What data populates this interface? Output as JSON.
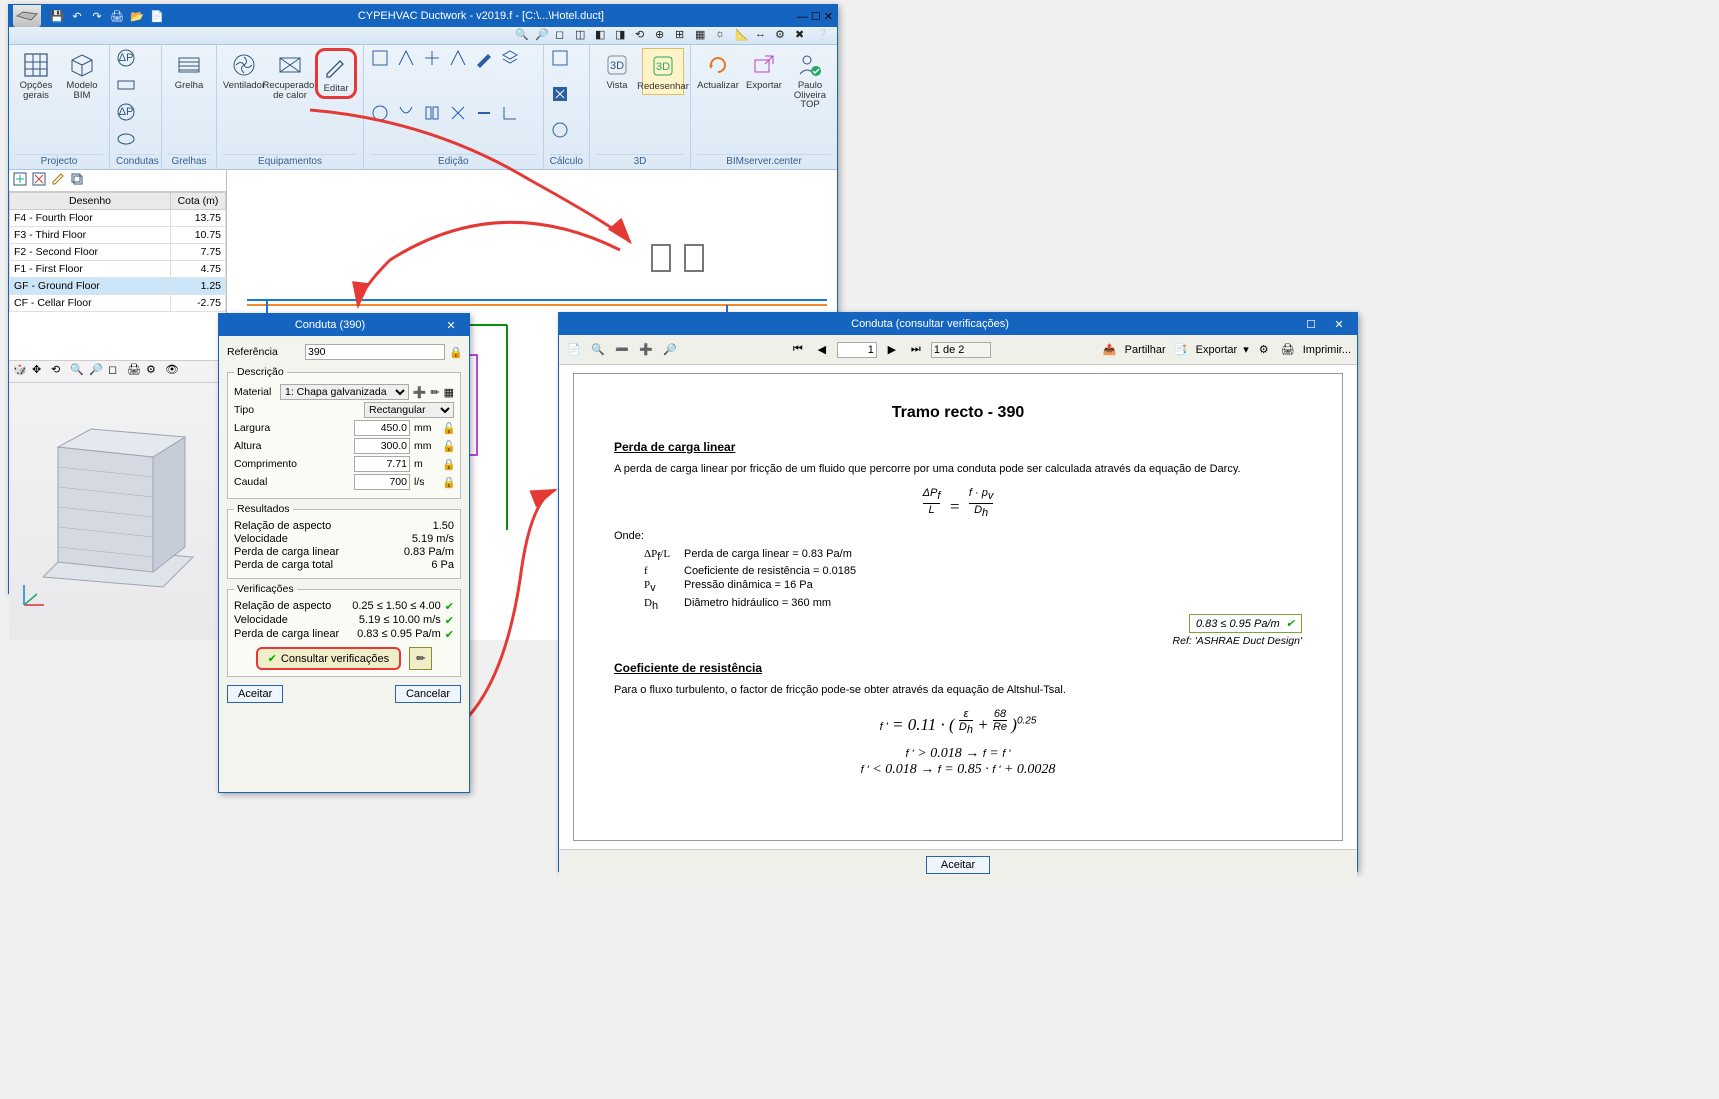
{
  "mainWindow": {
    "title": "CYPEHVAC Ductwork - v2019.f - [C:\\...\\Hotel.duct]",
    "ribbon": {
      "projecto": {
        "name": "Projecto",
        "opcoes": "Opções\ngerais",
        "modelo": "Modelo\nBIM"
      },
      "condutas": {
        "name": "Condutas"
      },
      "grelhas": {
        "name": "Grelhas",
        "grelha": "Grelha"
      },
      "equip": {
        "name": "Equipamentos",
        "ventilador": "Ventilador",
        "recuperador": "Recuperador\nde calor",
        "editar": "Editar"
      },
      "edicao": {
        "name": "Edição"
      },
      "calculo": {
        "name": "Cálculo"
      },
      "d3": {
        "name": "3D",
        "vista": "Vista",
        "redesenhar": "Redesenhar"
      },
      "bim": {
        "name": "BIMserver.center",
        "actualizar": "Actualizar",
        "exportar": "Exportar",
        "paulo": "Paulo\nOliveira TOP"
      }
    }
  },
  "floors": {
    "colDesenho": "Desenho",
    "colCota": "Cota (m)",
    "rows": [
      {
        "n": "F4 - Fourth Floor",
        "c": "13.75"
      },
      {
        "n": "F3 - Third Floor",
        "c": "10.75"
      },
      {
        "n": "F2 - Second Floor",
        "c": "7.75"
      },
      {
        "n": "F1 - First Floor",
        "c": "4.75"
      },
      {
        "n": "GF - Ground Floor",
        "c": "1.25",
        "sel": true
      },
      {
        "n": "CF - Cellar Floor",
        "c": "-2.75"
      }
    ]
  },
  "dlg390": {
    "title": "Conduta (390)",
    "referencia": {
      "label": "Referência",
      "value": "390"
    },
    "descricao": "Descrição",
    "material": {
      "label": "Material",
      "value": "1: Chapa galvanizada"
    },
    "tipo": {
      "label": "Tipo",
      "value": "Rectangular"
    },
    "largura": {
      "label": "Largura",
      "value": "450.0",
      "unit": "mm"
    },
    "altura": {
      "label": "Altura",
      "value": "300.0",
      "unit": "mm"
    },
    "compr": {
      "label": "Comprimento",
      "value": "7.71",
      "unit": "m"
    },
    "caudal": {
      "label": "Caudal",
      "value": "700",
      "unit": "l/s"
    },
    "resultados": {
      "legend": "Resultados",
      "aspecto": {
        "l": "Relação de aspecto",
        "v": "1.50"
      },
      "vel": {
        "l": "Velocidade",
        "v": "5.19 m/s"
      },
      "pcl": {
        "l": "Perda de carga linear",
        "v": "0.83 Pa/m"
      },
      "pct": {
        "l": "Perda de carga total",
        "v": "6 Pa"
      }
    },
    "verif": {
      "legend": "Verificações",
      "aspecto": {
        "l": "Relação de aspecto",
        "v": "0.25 ≤ 1.50 ≤ 4.00"
      },
      "vel": {
        "l": "Velocidade",
        "v": "5.19 ≤ 10.00  m/s"
      },
      "pcl": {
        "l": "Perda de carga linear",
        "v": "0.83 ≤ 0.95  Pa/m"
      },
      "consultar": "Consultar verificações"
    },
    "aceitar": "Aceitar",
    "cancelar": "Cancelar"
  },
  "report": {
    "title": "Conduta (consultar verificações)",
    "toolbar": {
      "page": "1",
      "pageof": "1 de 2",
      "partilhar": "Partilhar",
      "exportar": "Exportar",
      "imprimir": "Imprimir..."
    },
    "h2": "Tramo recto - 390",
    "sec1": {
      "h": "Perda de carga linear",
      "p": "A perda de carga linear por fricção de um fluido que percorre por uma conduta pode ser calculada através da equação de Darcy.",
      "onde": "Onde:",
      "dpl": "Perda de carga linear = 0.83 Pa/m",
      "f": "Coeficiente de resistência = 0.0185",
      "pv": "Pressão dinâmica = 16 Pa",
      "dh": "Diâmetro hidráulico = 360 mm",
      "pass": "0.83 ≤ 0.95 Pa/m",
      "ref": "Ref: 'ASHRAE Duct Design'"
    },
    "sec2": {
      "h": "Coeficiente  de  resistência",
      "p": "Para o fluxo turbulento, o factor de fricção pode-se obter através da equação de Altshul-Tsal."
    },
    "aceitar": "Aceitar"
  },
  "colors": {
    "red": "#e53935",
    "blue": "#1565c0",
    "orange": "#f08b2d",
    "green": "#0a8f0a"
  }
}
